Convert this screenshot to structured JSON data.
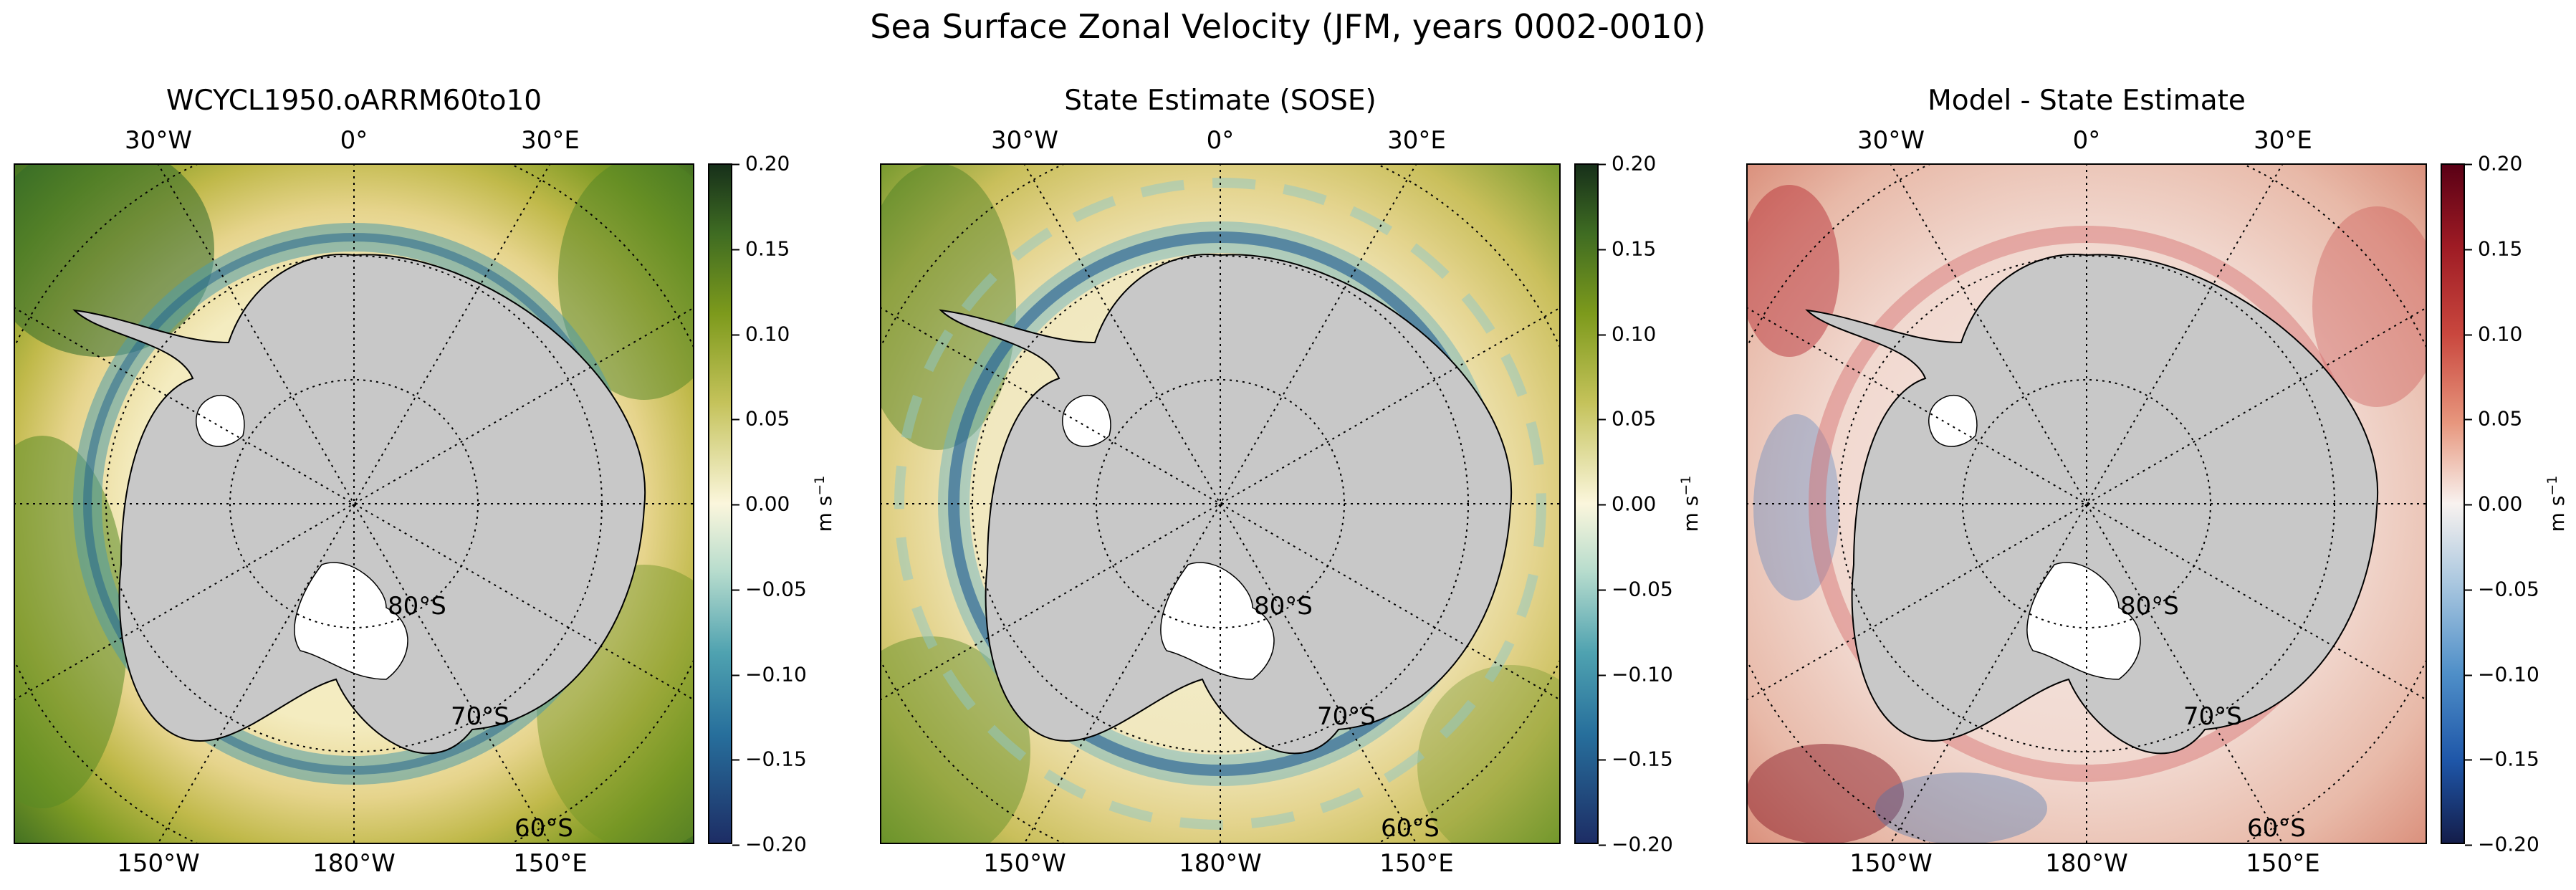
{
  "title": "Sea Surface Zonal Velocity (JFM, years 0002-0010)",
  "chart_data": {
    "type": "heatmap",
    "projection": "south polar stereographic",
    "variable": "Sea Surface Zonal Velocity",
    "season": "JFM",
    "years": "0002-0010",
    "longitude_labels_top": [
      "30°W",
      "0°",
      "30°E"
    ],
    "longitude_labels_bottom": [
      "150°W",
      "180°W",
      "150°E"
    ],
    "latitude_labels": [
      "80°S",
      "70°S",
      "60°S"
    ],
    "panels": [
      {
        "title": "WCYCL1950.oARRM60to10",
        "colormap": "green-yellow-blue (diverging)",
        "colorbar_range": [
          -0.2,
          0.2
        ],
        "colorbar_ticks": [
          "0.20",
          "0.15",
          "0.10",
          "0.05",
          "0.00",
          "−0.05",
          "−0.10",
          "−0.15",
          "−0.20"
        ],
        "units_label": "m s",
        "units_exponent": "−1"
      },
      {
        "title": "State Estimate (SOSE)",
        "colormap": "green-yellow-blue (diverging)",
        "colorbar_range": [
          -0.2,
          0.2
        ],
        "colorbar_ticks": [
          "0.20",
          "0.15",
          "0.10",
          "0.05",
          "0.00",
          "−0.05",
          "−0.10",
          "−0.15",
          "−0.20"
        ],
        "units_label": "m s",
        "units_exponent": "−1"
      },
      {
        "title": "Model - State Estimate",
        "colormap": "red-white-blue (diverging)",
        "colorbar_range": [
          -0.2,
          0.2
        ],
        "colorbar_ticks": [
          "0.20",
          "0.15",
          "0.10",
          "0.05",
          "0.00",
          "−0.05",
          "−0.10",
          "−0.15",
          "−0.20"
        ],
        "units_label": "m s",
        "units_exponent": "−1"
      }
    ]
  }
}
